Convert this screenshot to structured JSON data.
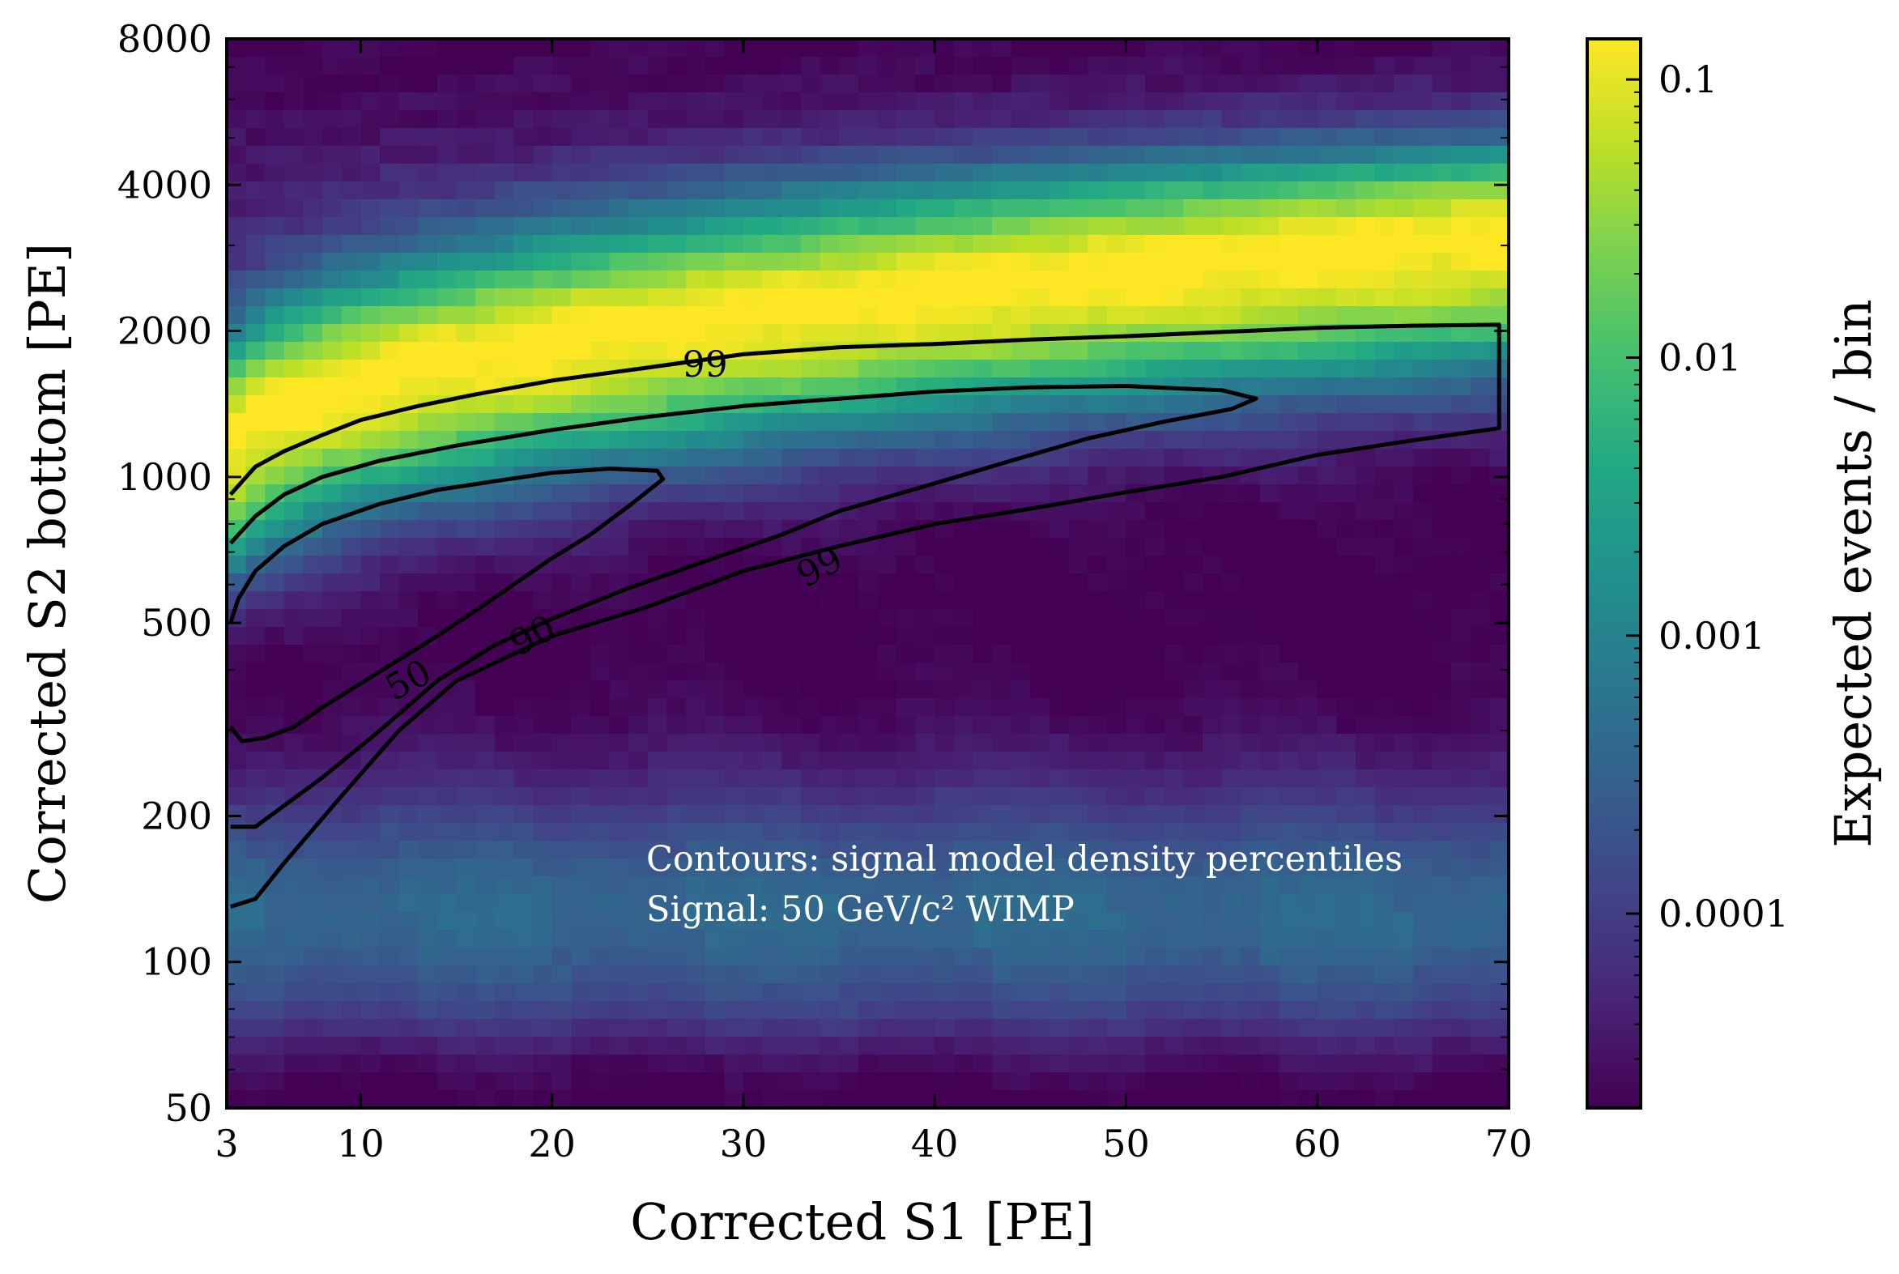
{
  "chart_data": {
    "type": "heatmap",
    "xlabel": "Corrected S1 [PE]",
    "ylabel": "Corrected S2 bottom [PE]",
    "x_scale": "linear",
    "y_scale": "log",
    "xlim": [
      3,
      70
    ],
    "ylim": [
      50,
      8000
    ],
    "x_ticks": [
      3,
      10,
      20,
      30,
      40,
      50,
      60,
      70
    ],
    "y_ticks": [
      50,
      100,
      200,
      500,
      1000,
      2000,
      4000,
      8000
    ],
    "colormap": "viridis",
    "colorbar": {
      "label": "Expected events / bin",
      "scale": "log",
      "range": [
        2e-05,
        0.14
      ],
      "ticks": [
        0.1,
        0.01,
        0.001,
        0.0001
      ],
      "tick_labels": [
        "0.1",
        "0.01",
        "0.001",
        "0.0001"
      ]
    },
    "density_model": {
      "description_bands": [
        {
          "name": "signal-band-center-at-s1",
          "s1": [
            3,
            10,
            20,
            30,
            40,
            50,
            60,
            70
          ],
          "s2": [
            1000,
            1500,
            2000,
            2300,
            2500,
            2700,
            2800,
            2900
          ]
        },
        {
          "name": "lower-band-level",
          "s2": [
            110,
            160
          ]
        }
      ]
    },
    "contours": [
      {
        "label": "50",
        "points": [
          [
            3.2,
            500
          ],
          [
            3.6,
            560
          ],
          [
            4.5,
            640
          ],
          [
            6,
            720
          ],
          [
            8,
            800
          ],
          [
            11,
            880
          ],
          [
            14,
            940
          ],
          [
            17,
            980
          ],
          [
            20,
            1020
          ],
          [
            23,
            1040
          ],
          [
            25.5,
            1030
          ],
          [
            25.8,
            990
          ],
          [
            24,
            870
          ],
          [
            22,
            760
          ],
          [
            20,
            680
          ],
          [
            18,
            600
          ],
          [
            16,
            530
          ],
          [
            14,
            470
          ],
          [
            12,
            420
          ],
          [
            10,
            375
          ],
          [
            8,
            335
          ],
          [
            6.5,
            305
          ],
          [
            5,
            290
          ],
          [
            3.8,
            285
          ],
          [
            3.2,
            305
          ]
        ]
      },
      {
        "label": "90",
        "points": [
          [
            3.2,
            730
          ],
          [
            4.5,
            830
          ],
          [
            6,
            920
          ],
          [
            8,
            1000
          ],
          [
            11,
            1080
          ],
          [
            15,
            1160
          ],
          [
            20,
            1250
          ],
          [
            25,
            1330
          ],
          [
            30,
            1400
          ],
          [
            35,
            1450
          ],
          [
            40,
            1500
          ],
          [
            45,
            1530
          ],
          [
            50,
            1540
          ],
          [
            53,
            1520
          ],
          [
            55,
            1510
          ],
          [
            56.8,
            1450
          ],
          [
            55.5,
            1380
          ],
          [
            52,
            1300
          ],
          [
            48,
            1200
          ],
          [
            44,
            1080
          ],
          [
            40,
            970
          ],
          [
            35,
            850
          ],
          [
            32,
            760
          ],
          [
            28,
            670
          ],
          [
            24,
            590
          ],
          [
            20,
            510
          ],
          [
            17,
            450
          ],
          [
            14,
            380
          ],
          [
            11,
            300
          ],
          [
            8,
            240
          ],
          [
            6,
            210
          ],
          [
            4.5,
            190
          ],
          [
            3.2,
            190
          ]
        ]
      },
      {
        "label": "99",
        "points": [
          [
            3.2,
            920
          ],
          [
            4.5,
            1050
          ],
          [
            6,
            1130
          ],
          [
            8,
            1220
          ],
          [
            10,
            1310
          ],
          [
            13,
            1400
          ],
          [
            16,
            1480
          ],
          [
            20,
            1580
          ],
          [
            25,
            1680
          ],
          [
            30,
            1790
          ],
          [
            35,
            1850
          ],
          [
            40,
            1880
          ],
          [
            45,
            1920
          ],
          [
            50,
            1950
          ],
          [
            55,
            1990
          ],
          [
            60,
            2030
          ],
          [
            65,
            2050
          ],
          [
            69.5,
            2060
          ],
          [
            69.5,
            1260
          ],
          [
            65,
            1190
          ],
          [
            60,
            1110
          ],
          [
            55,
            1000
          ],
          [
            50,
            930
          ],
          [
            45,
            860
          ],
          [
            40,
            800
          ],
          [
            35,
            720
          ],
          [
            30,
            640
          ],
          [
            25,
            540
          ],
          [
            20,
            470
          ],
          [
            15,
            380
          ],
          [
            12,
            300
          ],
          [
            9,
            220
          ],
          [
            6,
            160
          ],
          [
            4.5,
            135
          ],
          [
            3.2,
            130
          ]
        ]
      }
    ],
    "annotations": [
      "Contours: signal model density percentiles",
      "Signal: 50 GeV/c² WIMP"
    ]
  }
}
